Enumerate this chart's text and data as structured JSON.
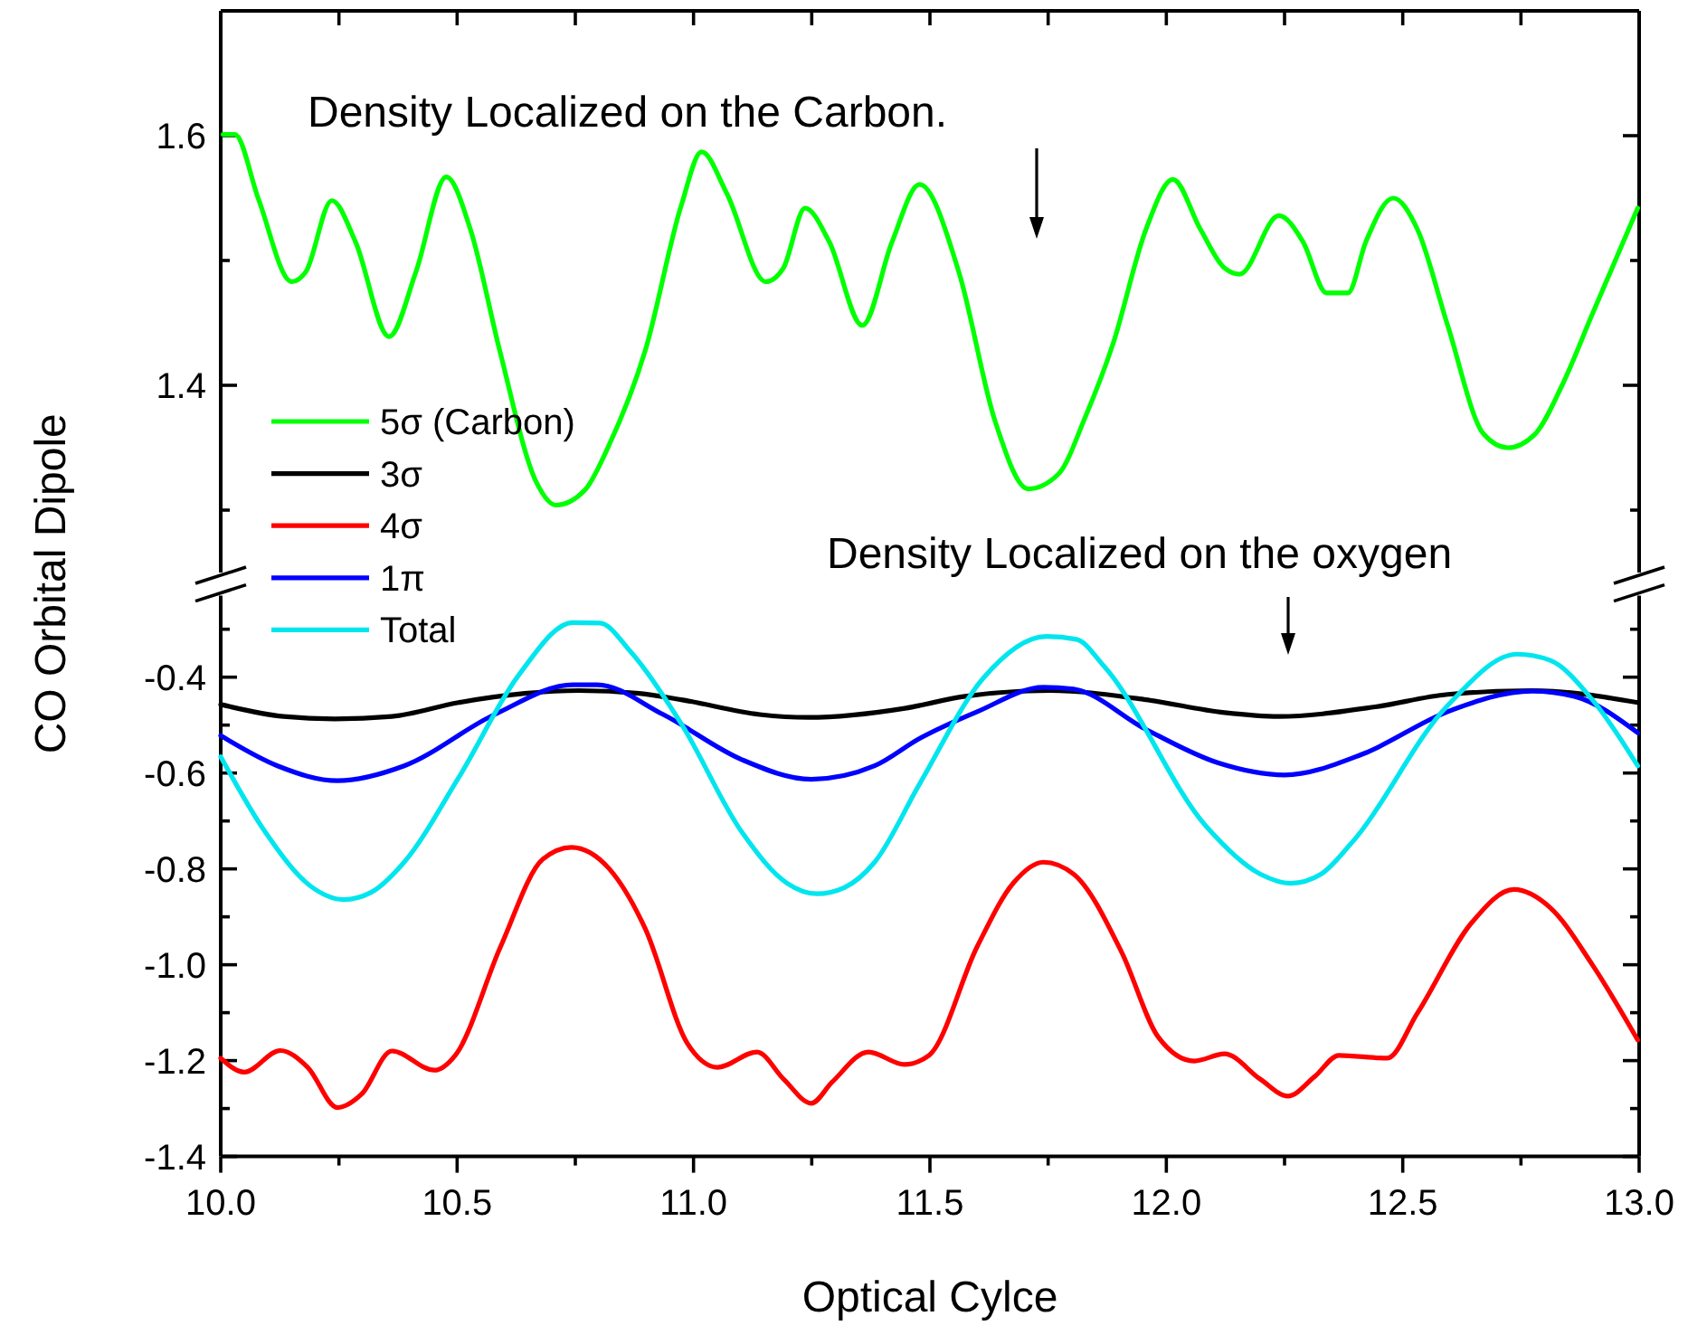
{
  "chart_data": [
    {
      "type": "line",
      "legend": "bottom left",
      "tick_labels": "y",
      "xlim": [
        10,
        13
      ],
      "xticks": [
        {
          "value": 10,
          "label": null
        },
        {
          "value": 10.25,
          "label": null
        },
        {
          "value": 10.5,
          "label": null
        },
        {
          "value": 10.75,
          "label": null
        },
        {
          "value": 11,
          "label": null
        },
        {
          "value": 11.25,
          "label": null
        },
        {
          "value": 11.5,
          "label": null
        },
        {
          "value": 11.75,
          "label": null
        },
        {
          "value": 12,
          "label": null
        },
        {
          "value": 12.25,
          "label": null
        },
        {
          "value": 12.5,
          "label": null
        },
        {
          "value": 12.75,
          "label": null
        },
        {
          "value": 13,
          "label": null
        }
      ],
      "ylim": [
        1.25,
        1.7
      ],
      "yticks": [
        {
          "value": 1.3,
          "label": null
        },
        1.4,
        {
          "value": 1.5,
          "label": null
        },
        1.6
      ],
      "annotations": [
        "Density Localized on the Carbon."
      ],
      "series": [
        {
          "name": "5σ (Carbon)",
          "color": "#00ff00",
          "x": [
            10.005,
            10.03,
            10.08,
            10.15,
            10.18,
            10.235,
            10.285,
            10.356,
            10.413,
            10.477,
            10.528,
            10.59,
            10.668,
            10.709,
            10.77,
            10.82,
            10.898,
            10.974,
            11.017,
            11.07,
            11.153,
            11.19,
            11.236,
            11.287,
            11.357,
            11.42,
            11.478,
            11.561,
            11.638,
            11.708,
            11.772,
            11.829,
            11.887,
            11.957,
            12.014,
            12.072,
            12.123,
            12.155,
            12.238,
            12.289,
            12.339,
            12.384,
            12.422,
            12.48,
            12.531,
            12.595,
            12.671,
            12.722,
            12.78,
            12.837,
            12.901,
            12.997
          ],
          "values": [
            1.601,
            1.601,
            1.549,
            1.483,
            1.491,
            1.548,
            1.515,
            1.439,
            1.491,
            1.567,
            1.525,
            1.428,
            1.322,
            1.304,
            1.316,
            1.351,
            1.428,
            1.544,
            1.587,
            1.554,
            1.483,
            1.494,
            1.542,
            1.515,
            1.448,
            1.515,
            1.561,
            1.491,
            1.371,
            1.317,
            1.329,
            1.375,
            1.433,
            1.525,
            1.565,
            1.525,
            1.494,
            1.489,
            1.536,
            1.515,
            1.474,
            1.474,
            1.515,
            1.55,
            1.525,
            1.448,
            1.361,
            1.35,
            1.361,
            1.4,
            1.457,
            1.542
          ]
        }
      ]
    },
    {
      "type": "line",
      "xlabel": "Optical Cylce",
      "ylabel": "CO Orbital Dipole",
      "legend": "top left",
      "xlim": [
        10,
        13
      ],
      "xticks": [
        {
          "value": 10,
          "label": "10.0"
        },
        {
          "value": 10.25,
          "label": null
        },
        {
          "value": 10.5,
          "label": "10.5"
        },
        {
          "value": 10.75,
          "label": null
        },
        {
          "value": 11,
          "label": "11.0"
        },
        {
          "value": 11.25,
          "label": null
        },
        {
          "value": 11.5,
          "label": "11.5"
        },
        {
          "value": 11.75,
          "label": null
        },
        {
          "value": 12,
          "label": "12.0"
        },
        {
          "value": 12.25,
          "label": null
        },
        {
          "value": 12.5,
          "label": "12.5"
        },
        {
          "value": 12.75,
          "label": null
        },
        {
          "value": 13,
          "label": "13.0"
        }
      ],
      "ylim": [
        -1.4,
        -0.23
      ],
      "yticks": [
        -1.4,
        {
          "value": -1.3,
          "label": null
        },
        -1.2,
        {
          "value": -1.1,
          "label": null
        },
        {
          "value": -1,
          "label": "-1.0"
        },
        {
          "value": -0.9,
          "label": null
        },
        -0.8,
        {
          "value": -0.7,
          "label": null
        },
        -0.6,
        {
          "value": -0.5,
          "label": null
        },
        -0.4,
        {
          "value": -0.3,
          "label": null
        }
      ],
      "annotations": [
        "Density Localized on the oxygen"
      ],
      "series": [
        {
          "name": "3σ",
          "color": "#000000",
          "x": [
            10,
            10.133,
            10.241,
            10.362,
            10.503,
            10.643,
            10.758,
            10.885,
            10.974,
            11.14,
            11.242,
            11.447,
            11.574,
            11.753,
            11.957,
            12.123,
            12.238,
            12.442,
            12.595,
            12.774,
            12.997
          ],
          "values": [
            -0.457,
            -0.482,
            -0.487,
            -0.482,
            -0.453,
            -0.434,
            -0.428,
            -0.434,
            -0.447,
            -0.478,
            -0.484,
            -0.465,
            -0.44,
            -0.428,
            -0.447,
            -0.474,
            -0.482,
            -0.462,
            -0.436,
            -0.428,
            -0.453
          ]
        },
        {
          "name": "4σ",
          "color": "#ff0000",
          "x": [
            10,
            10.05,
            10.126,
            10.184,
            10.247,
            10.298,
            10.362,
            10.452,
            10.496,
            10.592,
            10.681,
            10.742,
            10.821,
            10.898,
            10.987,
            11.051,
            11.134,
            11.191,
            11.249,
            11.293,
            11.37,
            11.446,
            11.498,
            11.6,
            11.676,
            11.74,
            11.804,
            11.906,
            11.983,
            12.059,
            12.123,
            12.199,
            12.257,
            12.314,
            12.365,
            12.467,
            12.531,
            12.646,
            12.735,
            12.812,
            12.901,
            12.997
          ],
          "values": [
            -1.195,
            -1.224,
            -1.179,
            -1.214,
            -1.298,
            -1.27,
            -1.18,
            -1.22,
            -1.189,
            -0.962,
            -0.78,
            -0.755,
            -0.799,
            -0.925,
            -1.164,
            -1.214,
            -1.182,
            -1.239,
            -1.289,
            -1.245,
            -1.182,
            -1.208,
            -1.189,
            -0.962,
            -0.83,
            -0.786,
            -0.811,
            -0.975,
            -1.151,
            -1.201,
            -1.186,
            -1.239,
            -1.274,
            -1.233,
            -1.189,
            -1.195,
            -1.101,
            -0.912,
            -0.843,
            -0.881,
            -1.0,
            -1.157
          ]
        },
        {
          "name": "1π",
          "color": "#0000ff",
          "x": [
            10,
            10.12,
            10.247,
            10.388,
            10.579,
            10.745,
            10.796,
            10.936,
            11.102,
            11.249,
            11.383,
            11.478,
            11.6,
            11.74,
            11.804,
            11.957,
            12.11,
            12.25,
            12.416,
            12.595,
            12.774,
            12.863,
            12.997
          ],
          "values": [
            -0.522,
            -0.585,
            -0.616,
            -0.585,
            -0.478,
            -0.416,
            -0.416,
            -0.478,
            -0.572,
            -0.613,
            -0.585,
            -0.528,
            -0.472,
            -0.421,
            -0.425,
            -0.509,
            -0.579,
            -0.604,
            -0.56,
            -0.472,
            -0.429,
            -0.44,
            -0.516
          ]
        },
        {
          "name": "Total",
          "color": "#00e5ee",
          "x": [
            10,
            10.094,
            10.19,
            10.26,
            10.318,
            10.388,
            10.503,
            10.63,
            10.745,
            10.802,
            10.866,
            10.974,
            11.102,
            11.198,
            11.261,
            11.319,
            11.383,
            11.478,
            11.612,
            11.746,
            11.81,
            11.868,
            12.084,
            12.199,
            12.263,
            12.327,
            12.39,
            12.595,
            12.742,
            12.812,
            12.901,
            12.997
          ],
          "values": [
            -0.566,
            -0.723,
            -0.836,
            -0.864,
            -0.849,
            -0.786,
            -0.61,
            -0.396,
            -0.286,
            -0.287,
            -0.346,
            -0.497,
            -0.723,
            -0.83,
            -0.852,
            -0.839,
            -0.786,
            -0.623,
            -0.403,
            -0.315,
            -0.321,
            -0.377,
            -0.711,
            -0.811,
            -0.83,
            -0.811,
            -0.748,
            -0.459,
            -0.352,
            -0.365,
            -0.447,
            -0.585
          ]
        }
      ]
    }
  ]
}
